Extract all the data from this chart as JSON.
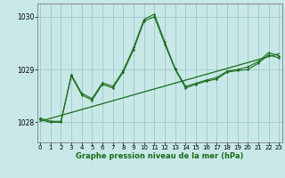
{
  "bg_color": "#c8e8e8",
  "grid_color": "#9ec8c8",
  "line_color": "#1a6b1a",
  "title": "Graphe pression niveau de la mer (hPa)",
  "xlim": [
    -0.3,
    23.3
  ],
  "ylim": [
    1027.62,
    1030.25
  ],
  "yticks": [
    1028,
    1029,
    1030
  ],
  "xticks": [
    0,
    1,
    2,
    3,
    4,
    5,
    6,
    7,
    8,
    9,
    10,
    11,
    12,
    13,
    14,
    15,
    16,
    17,
    18,
    19,
    20,
    21,
    22,
    23
  ],
  "series1_x": [
    0,
    1,
    2,
    3,
    4,
    5,
    6,
    7,
    8,
    9,
    10,
    11,
    12,
    13,
    14,
    15,
    16,
    17,
    18,
    19,
    20,
    21,
    22,
    23
  ],
  "series1_y": [
    1028.05,
    1028.0,
    1028.0,
    1028.88,
    1028.52,
    1028.42,
    1028.72,
    1028.65,
    1028.95,
    1029.38,
    1029.92,
    1030.0,
    1029.48,
    1029.0,
    1028.65,
    1028.72,
    1028.78,
    1028.82,
    1028.95,
    1028.98,
    1029.0,
    1029.12,
    1029.28,
    1029.22
  ],
  "series2_x": [
    0,
    1,
    2,
    3,
    4,
    5,
    6,
    7,
    8,
    9,
    10,
    11,
    12,
    13,
    14,
    15,
    16,
    17,
    18,
    19,
    20,
    21,
    22,
    23
  ],
  "series2_y": [
    1028.08,
    1028.02,
    1028.02,
    1028.9,
    1028.55,
    1028.45,
    1028.75,
    1028.68,
    1028.98,
    1029.42,
    1029.95,
    1030.05,
    1029.52,
    1029.02,
    1028.68,
    1028.74,
    1028.8,
    1028.85,
    1028.97,
    1029.0,
    1029.05,
    1029.15,
    1029.32,
    1029.26
  ],
  "trend_x": [
    0,
    23
  ],
  "trend_y": [
    1028.02,
    1029.3
  ],
  "tick_fontsize": 5.0,
  "label_fontsize": 6.0,
  "title_color": "#1a6b1a"
}
